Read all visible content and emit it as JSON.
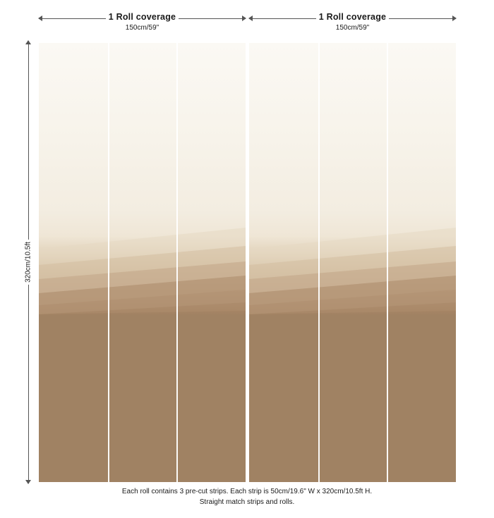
{
  "rolls": [
    {
      "title": "1 Roll coverage",
      "width_label": "150cm/59\""
    },
    {
      "title": "1 Roll coverage",
      "width_label": "150cm/59\""
    }
  ],
  "height_label": "320cm/10.5ft",
  "strips_per_roll": 3,
  "caption": {
    "line1": "Each roll contains 3 pre-cut strips.  Each strip is 50cm/19.6\" W x 320cm/10.5ft H.",
    "line2": "Straight match strips and rolls."
  },
  "colors": {
    "mural_light": "#f7f3ea",
    "mural_dark": "#a08263",
    "dimension_line": "#555555"
  }
}
